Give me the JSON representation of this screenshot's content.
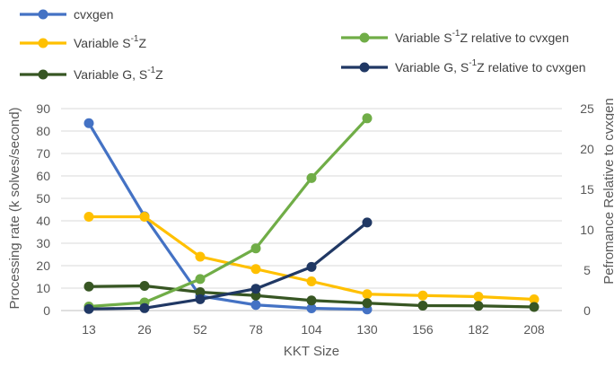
{
  "chart_data": {
    "type": "line",
    "categories": [
      "13",
      "26",
      "52",
      "78",
      "104",
      "130",
      "156",
      "182",
      "208"
    ],
    "xlabel": "KKT Size",
    "ylabel_left": "Processing rate (k solves/second)",
    "ylabel_right": "Pefromance Relative to cvxgen",
    "ylim_left": [
      0,
      90
    ],
    "yticks_left": [
      "0",
      "10",
      "20",
      "30",
      "40",
      "50",
      "60",
      "70",
      "80",
      "90"
    ],
    "ylim_right": [
      0,
      25
    ],
    "yticks_right": [
      "0",
      "5",
      "10",
      "15",
      "20",
      "25"
    ],
    "grid": true,
    "series": [
      {
        "name": "cvxgen",
        "label_parts": [
          "cvxgen"
        ],
        "axis": "left",
        "color": "#4472C4",
        "values": [
          83.5,
          42,
          6.5,
          2.5,
          1,
          0.5,
          null,
          null,
          null
        ]
      },
      {
        "name": "Variable S-1Z",
        "label_parts": [
          "Variable S",
          "-1",
          "Z"
        ],
        "axis": "left",
        "color": "#FFC000",
        "values": [
          41.8,
          41.8,
          24,
          18.5,
          13,
          7.3,
          6.7,
          6.2,
          5
        ]
      },
      {
        "name": "Variable G, S-1Z",
        "label_parts": [
          "Variable G, S",
          "-1",
          "Z"
        ],
        "axis": "left",
        "color": "#375623",
        "values": [
          10.7,
          11,
          8.2,
          6.7,
          4.5,
          3.3,
          2.2,
          2.1,
          1.6
        ]
      },
      {
        "name": "Variable S-1Z relative to cvxgen",
        "label_parts": [
          "Variable S",
          "-1",
          "Z relative to cvxgen"
        ],
        "axis": "right",
        "color": "#70AD47",
        "values": [
          0.5,
          1,
          3.9,
          7.7,
          16.4,
          23.8,
          null,
          null,
          null
        ]
      },
      {
        "name": "Variable G, S-1Z relative to cvxgen",
        "label_parts": [
          "Variable G, S",
          "-1",
          "Z relative to cvxgen"
        ],
        "axis": "right",
        "color": "#203864",
        "values": [
          0.2,
          0.3,
          1.4,
          2.7,
          5.4,
          10.9,
          null,
          null,
          null
        ]
      }
    ]
  }
}
